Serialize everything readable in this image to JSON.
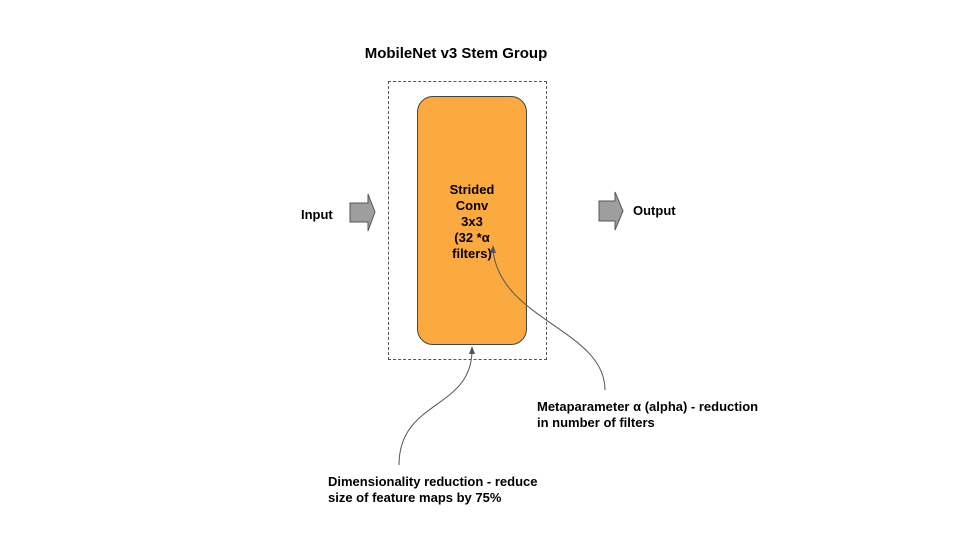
{
  "diagram": {
    "title": "MobileNet v3 Stem Group",
    "input_label": "Input",
    "output_label": "Output",
    "block_label": "Strided\nConv\n3x3\n(32 *α\nfilters)",
    "annotations": {
      "alpha": "Metaparameter α (alpha) - reduction\nin number of filters",
      "dimensionality": "Dimensionality reduction - reduce\nsize of feature maps by 75%"
    },
    "colors": {
      "block_fill": "#fbaa40",
      "arrow_fill": "#9e9e9e",
      "stroke": "#444444"
    }
  }
}
